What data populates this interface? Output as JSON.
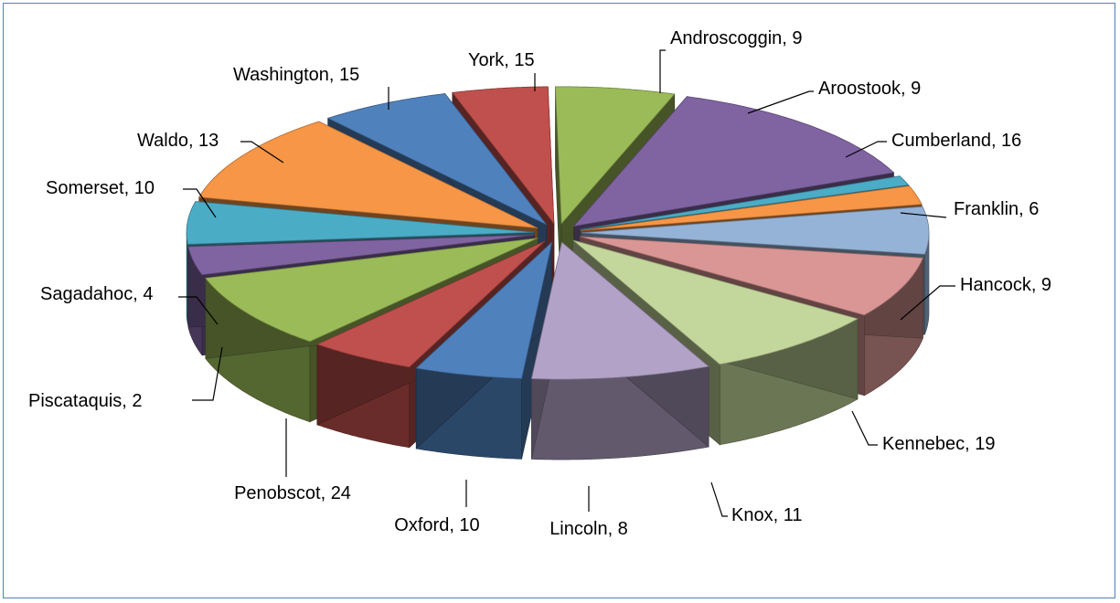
{
  "chart_data": {
    "type": "pie",
    "title": "",
    "slices": [
      {
        "label": "Androscoggin",
        "value": 9,
        "color": "#4f81bd"
      },
      {
        "label": "Aroostook",
        "value": 9,
        "color": "#c0504d"
      },
      {
        "label": "Cumberland",
        "value": 16,
        "color": "#9bbb59"
      },
      {
        "label": "Franklin",
        "value": 6,
        "color": "#8064a2"
      },
      {
        "label": "Hancock",
        "value": 9,
        "color": "#4bacc6"
      },
      {
        "label": "Kennebec",
        "value": 19,
        "color": "#f79646"
      },
      {
        "label": "Knox",
        "value": 11,
        "color": "#4f81bd"
      },
      {
        "label": "Lincoln",
        "value": 8,
        "color": "#c0504d"
      },
      {
        "label": "Oxford",
        "value": 10,
        "color": "#9bbb59"
      },
      {
        "label": "Penobscot",
        "value": 24,
        "color": "#8064a2"
      },
      {
        "label": "Piscataquis",
        "value": 2,
        "color": "#4bacc6"
      },
      {
        "label": "Sagadahoc",
        "value": 4,
        "color": "#f79646"
      },
      {
        "label": "Somerset",
        "value": 10,
        "color": "#95b3d7"
      },
      {
        "label": "Waldo",
        "value": 13,
        "color": "#d99694"
      },
      {
        "label": "Washington",
        "value": 15,
        "color": "#c3d69b"
      },
      {
        "label": "York",
        "value": 15,
        "color": "#b2a2c7"
      }
    ],
    "data_labels": [
      "Androscoggin, 9",
      "Aroostook, 9",
      "Cumberland, 16",
      "Franklin, 6",
      "Hancock, 9",
      "Kennebec, 19",
      "Knox, 11",
      "Lincoln, 8",
      "Oxford, 10",
      "Penobscot, 24",
      "Piscataquis, 2",
      "Sagadahoc, 4",
      "Somerset, 10",
      "Waldo, 13",
      "Washington, 15",
      "York, 15"
    ],
    "exploded": true,
    "three_d": true,
    "legend": "none"
  }
}
